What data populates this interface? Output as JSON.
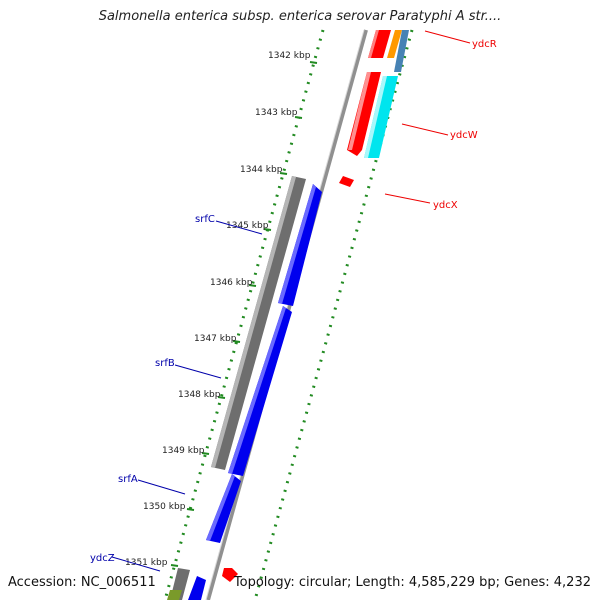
{
  "header": {
    "title": "Salmonella enterica subsp. enterica serovar Paratyphi A str...."
  },
  "footer": {
    "accession": "Accession: NC_006511",
    "topology": "Topology: circular; Length: 4,585,229 bp; Genes: 4,232"
  },
  "ticks": [
    "1342 kbp",
    "1343 kbp",
    "1344 kbp",
    "1345 kbp",
    "1346 kbp",
    "1347 kbp",
    "1348 kbp",
    "1349 kbp",
    "1350 kbp",
    "1351 kbp"
  ],
  "genes": {
    "ydcR": "ydcR",
    "ydcW": "ydcW",
    "ydcX": "ydcX",
    "srfC": "srfC",
    "srfB": "srfB",
    "srfA": "srfA",
    "ydcZ": "ydcZ"
  },
  "colors": {
    "forward_cds": "#ff0000",
    "reverse_cds": "#0000ee",
    "gray_feature": "#6e6e6e",
    "cyan_feature": "#00e5ee",
    "orange_feature": "#ff9900",
    "steelblue_feature": "#4682b4",
    "olive_feature": "#7a9a2a",
    "dotted_ring": "#228b22",
    "backbone": "#909090",
    "label_red": "#ee0000",
    "label_blue": "#0000aa"
  }
}
